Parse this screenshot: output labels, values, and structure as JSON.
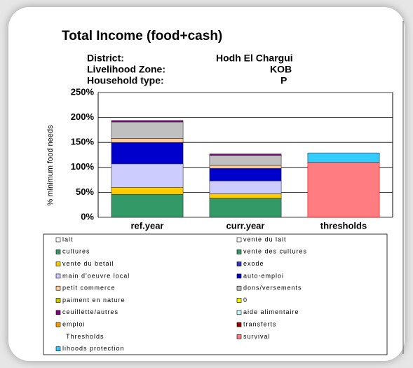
{
  "chart_data": {
    "type": "stacked_bar",
    "title": "Total Income (food+cash)",
    "info": [
      {
        "label": "District:",
        "value": "Hodh El Chargui"
      },
      {
        "label": "Livelihood Zone:",
        "value": "KOB"
      },
      {
        "label": "Household type:",
        "value": "P"
      }
    ],
    "y_label": "% minimum food needs",
    "categories": [
      "ref.year",
      "curr.year",
      "thresholds"
    ],
    "ylim": [
      0,
      250
    ],
    "yticks": [
      {
        "value": 0,
        "label": "0%"
      },
      {
        "value": 50,
        "label": "50%"
      },
      {
        "value": 100,
        "label": "100%"
      },
      {
        "value": 150,
        "label": "150%"
      },
      {
        "value": 200,
        "label": "200%"
      },
      {
        "value": 250,
        "label": "250%"
      }
    ],
    "grid": true,
    "series": [
      {
        "name": "lait",
        "color": "#ffffff",
        "values": [
          0,
          0,
          null
        ]
      },
      {
        "name": "vente du lait",
        "color": "#ffffff",
        "values": [
          0,
          0,
          null
        ]
      },
      {
        "name": "cultures",
        "color": "#339966",
        "values": [
          0,
          0,
          null
        ]
      },
      {
        "name": "vente des cultures",
        "color": "#339966",
        "values": [
          46,
          38,
          null
        ]
      },
      {
        "name": "vente du betail",
        "color": "#ffcc00",
        "values": [
          14,
          9,
          null
        ]
      },
      {
        "name": "exode",
        "color": "#3333cc",
        "values": [
          0,
          0,
          null
        ]
      },
      {
        "name": "main d'oeuvre local",
        "color": "#ccccff",
        "values": [
          47,
          26,
          null
        ]
      },
      {
        "name": "auto-emploi",
        "color": "#0000cc",
        "values": [
          43,
          25,
          null
        ]
      },
      {
        "name": "petit commerce",
        "color": "#ffcc99",
        "values": [
          8,
          6,
          null
        ]
      },
      {
        "name": "dons/versements",
        "color": "#c0c0c0",
        "values": [
          33,
          20,
          null
        ]
      },
      {
        "name": "paiment en nature",
        "color": "#cccc00",
        "values": [
          0,
          0,
          null
        ]
      },
      {
        "name": "0",
        "color": "#ffff00",
        "values": [
          0,
          0,
          null
        ]
      },
      {
        "name": "ceuillette/autres",
        "color": "#800080",
        "values": [
          3,
          3,
          null
        ]
      },
      {
        "name": "aide alimentaire",
        "color": "#ccffff",
        "values": [
          0,
          0,
          null
        ]
      },
      {
        "name": "emploi",
        "color": "#ff9900",
        "values": [
          0,
          0,
          null
        ]
      },
      {
        "name": "transferts",
        "color": "#990000",
        "values": [
          0,
          0,
          null
        ]
      },
      {
        "name": "Thresholds",
        "color": null,
        "values": [
          null,
          null,
          null
        ]
      },
      {
        "name": "survival",
        "color": "#ff7c80",
        "values": [
          null,
          null,
          110
        ]
      },
      {
        "name": "lihoods protection",
        "color": "#33ccff",
        "values": [
          null,
          null,
          19
        ]
      }
    ]
  }
}
